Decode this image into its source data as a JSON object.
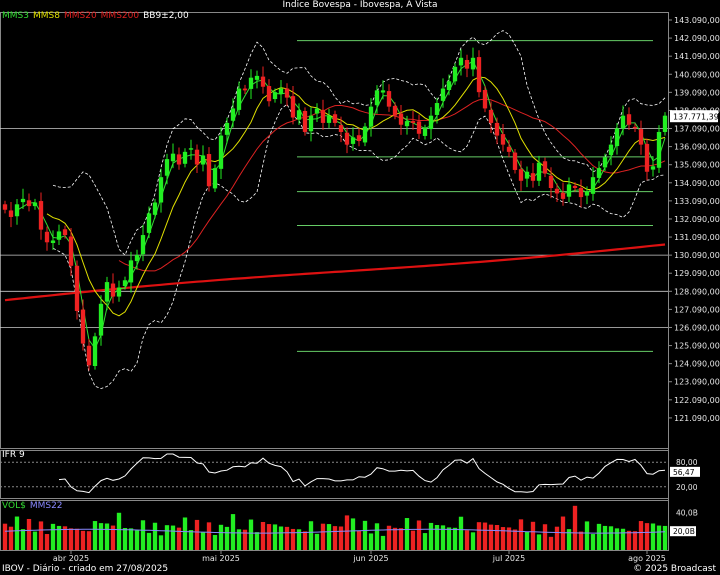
{
  "title": "Índice Bovespa - Ibovespa, À Vista",
  "legend_main": [
    {
      "label": "MMS3",
      "color": "#33dd33"
    },
    {
      "label": "MMS8",
      "color": "#e0e000"
    },
    {
      "label": "MMS20",
      "color": "#e02020"
    },
    {
      "label": "MMS200",
      "color": "#e02020"
    },
    {
      "label": "BB9±2,00",
      "color": "#ffffff"
    }
  ],
  "rsi_panel": {
    "label": "IFR 9",
    "ticks": [
      "80,00",
      "20,00"
    ],
    "current": "56,47",
    "current_value": 56.47
  },
  "vol_panel": {
    "label": "VOL$",
    "ma_label": "MMS22",
    "ticks": [
      "40,0B",
      "20,0B"
    ],
    "current": "20,0B"
  },
  "footer": {
    "left": "IBOV - Diário - criado em 27/08/2025",
    "right": "© 2025 Broadcast"
  },
  "current_price_label": "137.771,39",
  "colors": {
    "up": "#22ee22",
    "down": "#ee2222",
    "mma200": "#dd1111",
    "bands": "#ffffff",
    "level": "#66cc66"
  },
  "chart_data": {
    "type": "candlestick",
    "ylim": [
      120090,
      143090
    ],
    "y_ticks": [
      "143.090,00",
      "142.090,00",
      "141.090,00",
      "140.090,00",
      "139.090,00",
      "138.090,00",
      "137.090,00",
      "136.090,00",
      "135.090,00",
      "134.090,00",
      "133.090,00",
      "132.090,00",
      "131.090,00",
      "130.090,00",
      "129.090,00",
      "128.090,00",
      "127.090,00",
      "126.090,00",
      "125.090,00",
      "124.090,00",
      "123.090,00",
      "122.090,00",
      "121.090,00"
    ],
    "x_labels": [
      "abr 2025",
      "mai 2025",
      "jun 2025",
      "jul 2025",
      "ago 2025"
    ],
    "close": [
      132600,
      132200,
      132900,
      133200,
      132800,
      133000,
      131500,
      130800,
      130900,
      131400,
      131200,
      129500,
      127000,
      125200,
      124000,
      125600,
      127400,
      128600,
      127800,
      128300,
      128700,
      129800,
      130100,
      131200,
      132400,
      133000,
      134400,
      135400,
      135700,
      135100,
      135800,
      136000,
      135100,
      135600,
      133900,
      134900,
      136700,
      137400,
      138200,
      139300,
      139200,
      139900,
      140000,
      139400,
      138600,
      139100,
      139300,
      138800,
      137700,
      138100,
      136900,
      137800,
      138200,
      137400,
      137800,
      137400,
      136900,
      136200,
      136600,
      136400,
      137200,
      138300,
      139200,
      139200,
      138300,
      137800,
      137300,
      137500,
      137400,
      136800,
      137100,
      137800,
      138500,
      139300,
      139700,
      140500,
      141000,
      140400,
      141000,
      139100,
      138200,
      137400,
      136700,
      136200,
      135800,
      134800,
      134200,
      134700,
      134200,
      135200,
      134600,
      133800,
      133500,
      133200,
      134000,
      133800,
      133300,
      133600,
      134400,
      134900,
      135500,
      136200,
      137100,
      137800,
      137300,
      137100,
      136200,
      134700,
      135000,
      136900,
      137800
    ]
  }
}
